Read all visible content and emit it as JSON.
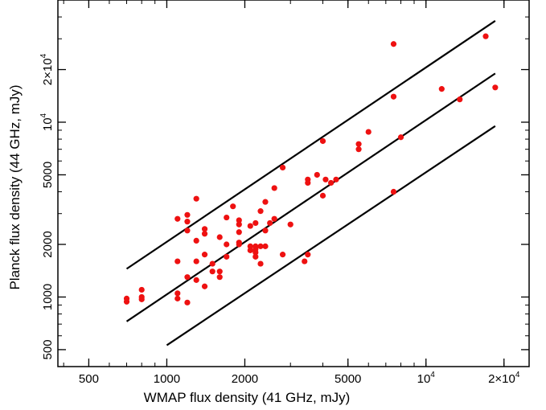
{
  "chart_data": {
    "type": "scatter",
    "title": "",
    "xlabel": "WMAP flux density (41 GHz, mJy)",
    "ylabel": "Planck flux density (44 GHz, mJy)",
    "xscale": "log",
    "yscale": "log",
    "xlim": [
      380,
      25000
    ],
    "ylim": [
      400,
      50000
    ],
    "grid": false,
    "legend": "none",
    "marker_color": "#ee1111",
    "line_color": "#000000",
    "x_ticks": [
      {
        "value": 500,
        "label": "500"
      },
      {
        "value": 1000,
        "label": "1000"
      },
      {
        "value": 2000,
        "label": "2000"
      },
      {
        "value": 5000,
        "label": "5000"
      },
      {
        "value": 10000,
        "label": "10",
        "exp": "4"
      },
      {
        "value": 20000,
        "label": "2×10",
        "exp": "4"
      }
    ],
    "y_ticks": [
      {
        "value": 500,
        "label": "500"
      },
      {
        "value": 1000,
        "label": "1000"
      },
      {
        "value": 2000,
        "label": "2000"
      },
      {
        "value": 5000,
        "label": "5000"
      },
      {
        "value": 10000,
        "label": "10",
        "exp": "4"
      },
      {
        "value": 20000,
        "label": "2×10",
        "exp": "4"
      }
    ],
    "reference_lines": [
      {
        "x": [
          700,
          18500
        ],
        "y": [
          1450,
          38000
        ]
      },
      {
        "x": [
          700,
          18500
        ],
        "y": [
          725,
          19000
        ]
      },
      {
        "x": [
          1000,
          18500
        ],
        "y": [
          530,
          9500
        ]
      }
    ],
    "points": [
      {
        "x": 700,
        "y": 980
      },
      {
        "x": 700,
        "y": 940
      },
      {
        "x": 800,
        "y": 1100
      },
      {
        "x": 800,
        "y": 1000
      },
      {
        "x": 800,
        "y": 970
      },
      {
        "x": 1100,
        "y": 2800
      },
      {
        "x": 1100,
        "y": 1600
      },
      {
        "x": 1100,
        "y": 1050
      },
      {
        "x": 1100,
        "y": 980
      },
      {
        "x": 1200,
        "y": 2950
      },
      {
        "x": 1200,
        "y": 2700
      },
      {
        "x": 1200,
        "y": 2400
      },
      {
        "x": 1200,
        "y": 1300
      },
      {
        "x": 1200,
        "y": 930
      },
      {
        "x": 1300,
        "y": 3650
      },
      {
        "x": 1300,
        "y": 2100
      },
      {
        "x": 1300,
        "y": 1600
      },
      {
        "x": 1300,
        "y": 1250
      },
      {
        "x": 1400,
        "y": 2450
      },
      {
        "x": 1400,
        "y": 2300
      },
      {
        "x": 1400,
        "y": 1750
      },
      {
        "x": 1400,
        "y": 1150
      },
      {
        "x": 1500,
        "y": 1550
      },
      {
        "x": 1500,
        "y": 1400
      },
      {
        "x": 1600,
        "y": 2200
      },
      {
        "x": 1600,
        "y": 1400
      },
      {
        "x": 1600,
        "y": 1300
      },
      {
        "x": 1700,
        "y": 2850
      },
      {
        "x": 1700,
        "y": 2000
      },
      {
        "x": 1700,
        "y": 1700
      },
      {
        "x": 1800,
        "y": 3300
      },
      {
        "x": 1900,
        "y": 2750
      },
      {
        "x": 1900,
        "y": 2600
      },
      {
        "x": 1900,
        "y": 2350
      },
      {
        "x": 1900,
        "y": 2050
      },
      {
        "x": 1900,
        "y": 2000
      },
      {
        "x": 2100,
        "y": 2550
      },
      {
        "x": 2100,
        "y": 1950
      },
      {
        "x": 2100,
        "y": 1850
      },
      {
        "x": 2200,
        "y": 2650
      },
      {
        "x": 2200,
        "y": 1950
      },
      {
        "x": 2200,
        "y": 1880
      },
      {
        "x": 2200,
        "y": 1800
      },
      {
        "x": 2200,
        "y": 1700
      },
      {
        "x": 2300,
        "y": 3100
      },
      {
        "x": 2300,
        "y": 1950
      },
      {
        "x": 2300,
        "y": 1550
      },
      {
        "x": 2400,
        "y": 3500
      },
      {
        "x": 2400,
        "y": 2400
      },
      {
        "x": 2400,
        "y": 1950
      },
      {
        "x": 2500,
        "y": 2650
      },
      {
        "x": 2600,
        "y": 4200
      },
      {
        "x": 2600,
        "y": 2800
      },
      {
        "x": 2800,
        "y": 5500
      },
      {
        "x": 2800,
        "y": 1750
      },
      {
        "x": 3000,
        "y": 2600
      },
      {
        "x": 3400,
        "y": 1600
      },
      {
        "x": 3500,
        "y": 4700
      },
      {
        "x": 3500,
        "y": 4500
      },
      {
        "x": 3500,
        "y": 1750
      },
      {
        "x": 3800,
        "y": 5000
      },
      {
        "x": 4000,
        "y": 7800
      },
      {
        "x": 4000,
        "y": 3800
      },
      {
        "x": 4100,
        "y": 4700
      },
      {
        "x": 4300,
        "y": 4500
      },
      {
        "x": 4500,
        "y": 4700
      },
      {
        "x": 5500,
        "y": 7500
      },
      {
        "x": 5500,
        "y": 7000
      },
      {
        "x": 6000,
        "y": 8800
      },
      {
        "x": 7500,
        "y": 28000
      },
      {
        "x": 7500,
        "y": 14000
      },
      {
        "x": 7500,
        "y": 4000
      },
      {
        "x": 8000,
        "y": 8200
      },
      {
        "x": 11500,
        "y": 15500
      },
      {
        "x": 13500,
        "y": 13500
      },
      {
        "x": 17000,
        "y": 31000
      },
      {
        "x": 18500,
        "y": 15800
      }
    ]
  }
}
